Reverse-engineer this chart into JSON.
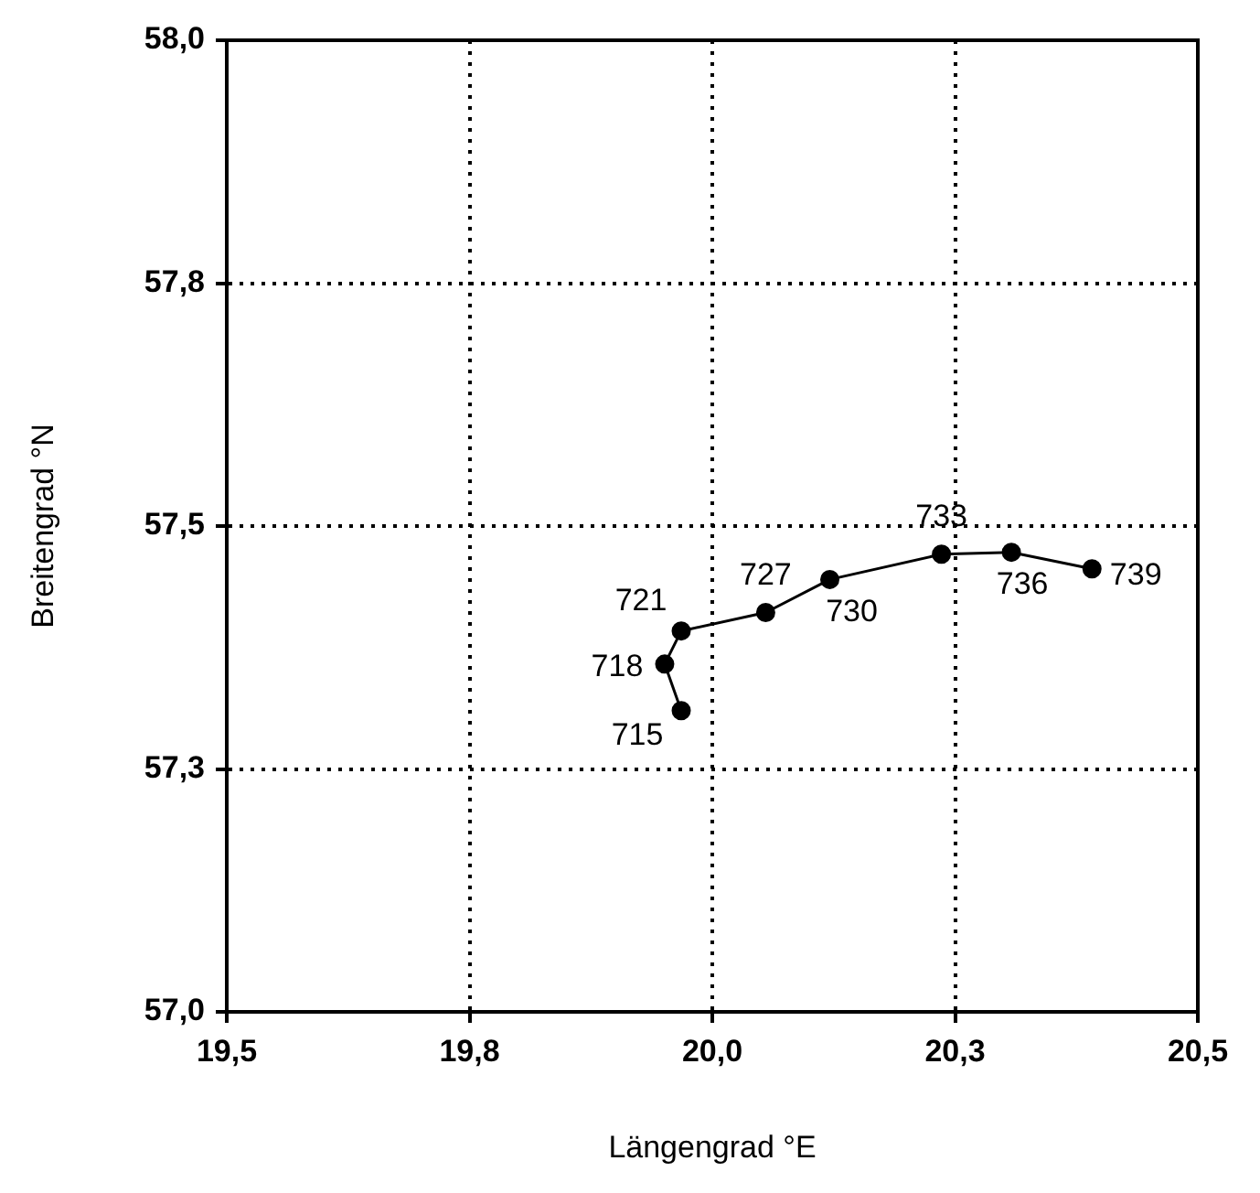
{
  "chart_data": {
    "type": "line",
    "xlabel": "Längengrad °E",
    "ylabel": "Breitengrad °N",
    "x": [
      19.968,
      19.951,
      19.968,
      20.055,
      20.121,
      20.236,
      20.308,
      20.391
    ],
    "series": [
      {
        "color": "#000000",
        "values": [
          57.31,
          57.358,
          57.392,
          57.411,
          57.445,
          57.471,
          57.473,
          57.456
        ]
      }
    ],
    "xlim": [
      19.5,
      20.5
    ],
    "ylim": [
      57.0,
      58.0
    ],
    "xticks": [
      {
        "value": 19.5,
        "label": "19,5"
      },
      {
        "value": 19.75,
        "label": "19,8"
      },
      {
        "value": 20.0,
        "label": "20,0"
      },
      {
        "value": 20.25,
        "label": "20,3"
      },
      {
        "value": 20.5,
        "label": "20,5"
      }
    ],
    "yticks": [
      {
        "value": 57.0,
        "label": "57,0"
      },
      {
        "value": 57.25,
        "label": "57,3"
      },
      {
        "value": 57.5,
        "label": "57,5"
      },
      {
        "value": 57.75,
        "label": "57,8"
      },
      {
        "value": 58.0,
        "label": "58,0"
      }
    ],
    "grid": true,
    "legend": false,
    "marker": "circle",
    "line_style": "solid",
    "annotations": [
      {
        "text": "715",
        "x": 19.968,
        "y": 57.31
      },
      {
        "text": "718",
        "x": 19.951,
        "y": 57.358
      },
      {
        "text": "721",
        "x": 19.968,
        "y": 57.392
      },
      {
        "text": "727",
        "x": 20.055,
        "y": 57.411
      },
      {
        "text": "730",
        "x": 20.121,
        "y": 57.445
      },
      {
        "text": "733",
        "x": 20.236,
        "y": 57.471
      },
      {
        "text": "736",
        "x": 20.308,
        "y": 57.473
      },
      {
        "text": "739",
        "x": 20.391,
        "y": 57.456
      }
    ]
  }
}
